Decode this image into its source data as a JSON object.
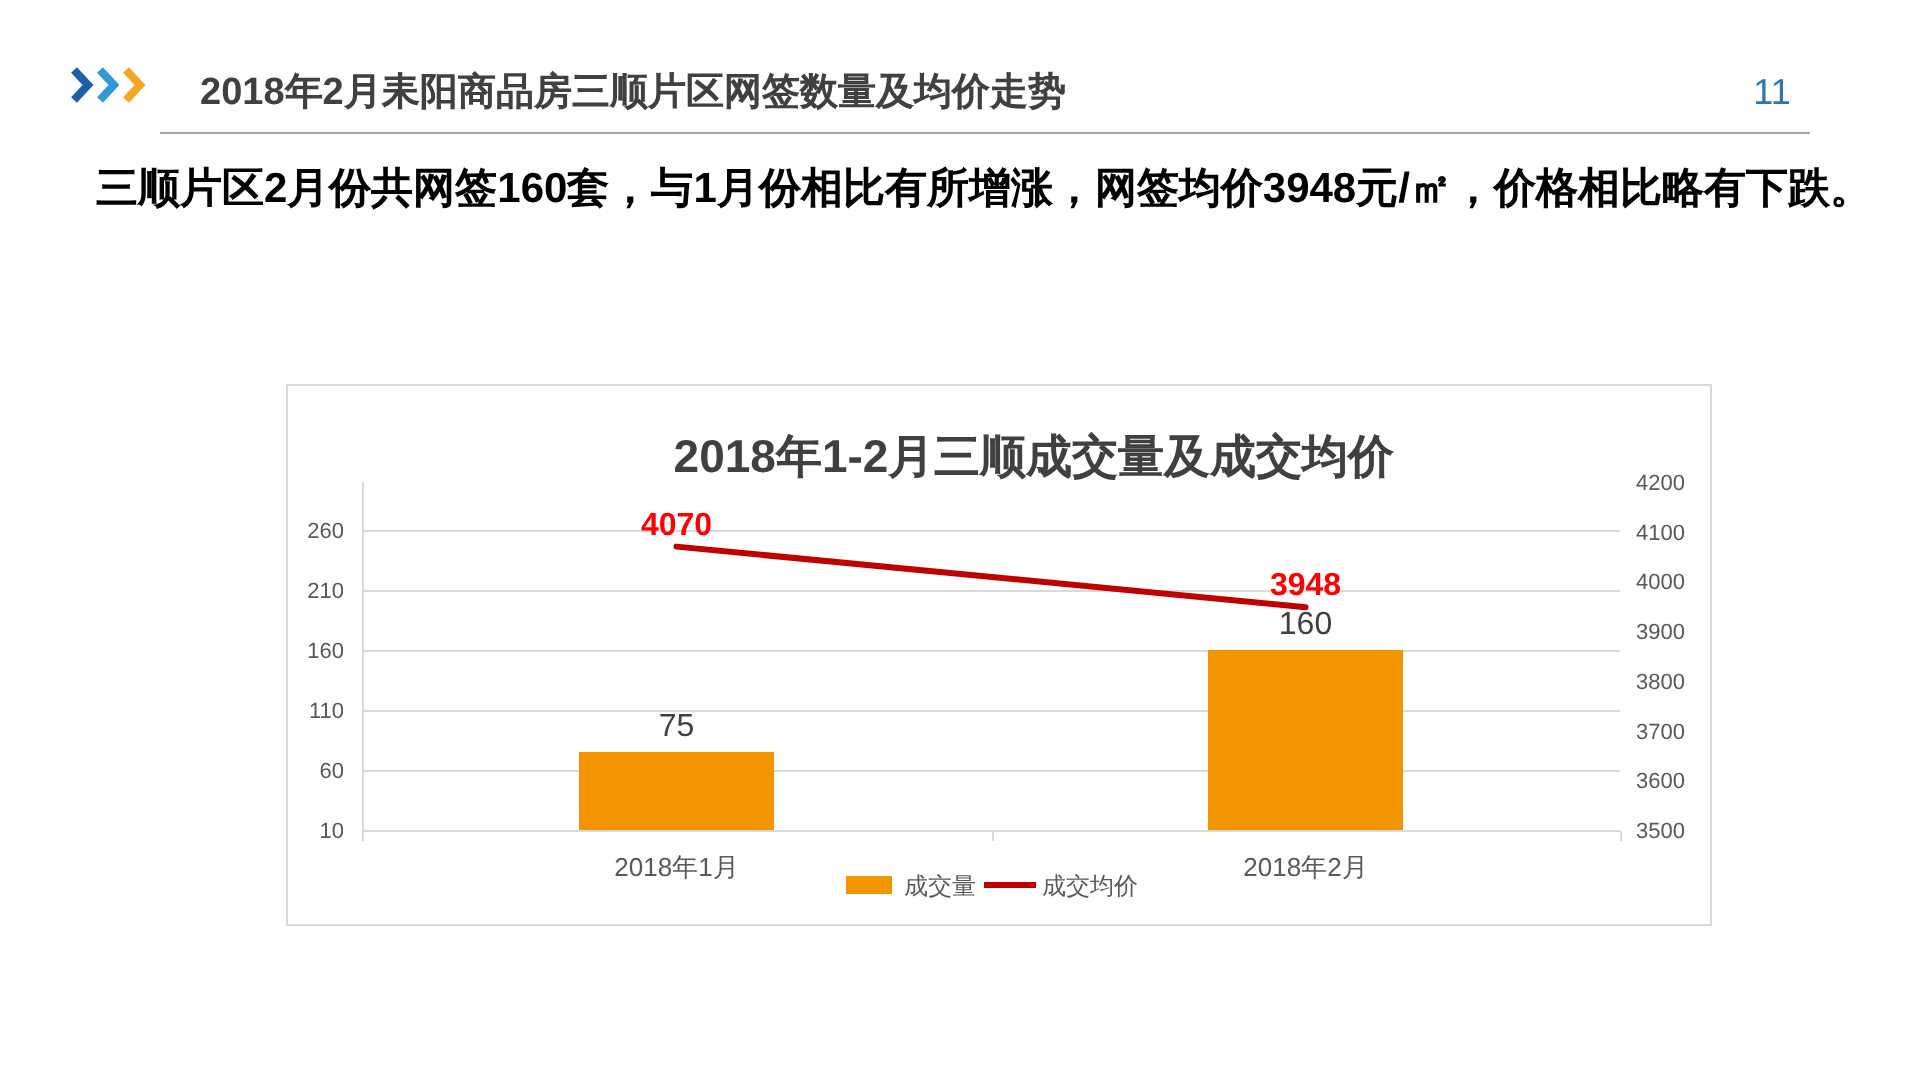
{
  "chart_data": {
    "type": "bar",
    "title": "2018年1-2月三顺成交量及成交均价",
    "annotations": [
      "2018年2月耒阳商品房三顺片区网签数量及均价走势",
      "11",
      "三顺片区2月份共网签160套，与1月份相比有所增涨，网签均价3948元/㎡，价格相比略有下跌。"
    ],
    "categories": [
      "2018年1月",
      "2018年2月"
    ],
    "series": [
      {
        "name": "成交量",
        "color": "#f29400",
        "values": [
          75,
          160
        ]
      },
      {
        "name": "成交均价",
        "type": "line",
        "axis": "y2",
        "color": "#c00000",
        "values": [
          4070,
          3948
        ]
      }
    ],
    "ylim": [
      10,
      300
    ],
    "yticks": [
      10,
      60,
      110,
      160,
      210,
      260
    ],
    "y2lim": [
      3500,
      4200
    ],
    "y2ticks": [
      3500,
      3600,
      3700,
      3800,
      3900,
      4000,
      4100,
      4200
    ],
    "grid": "y",
    "legend": "bottom",
    "data_labels": true
  }
}
